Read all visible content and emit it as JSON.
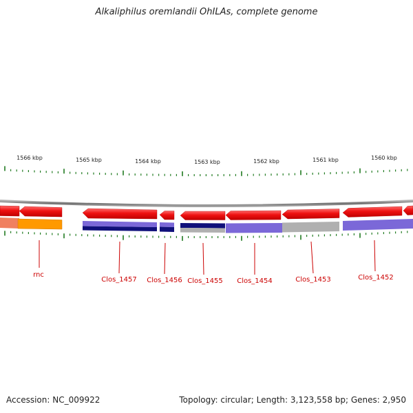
{
  "title": "Alkaliphilus oremlandii OhILAs, complete genome",
  "accession": "Accession: NC_009922",
  "summary": "Topology: circular; Length: 3,123,558 bp; Genes: 2,950",
  "ruler_labels": [
    "1566 kbp",
    "1565 kbp",
    "1564 kbp",
    "1563 kbp",
    "1562 kbp",
    "1561 kbp",
    "1560 kbp"
  ],
  "gene_labels": [
    "rnc",
    "Clos_1457",
    "Clos_1456",
    "Clos_1455",
    "Clos_1454",
    "Clos_1453",
    "Clos_1452"
  ],
  "colors": {
    "gene_arrow": "#ee1111",
    "backbone": "#888888",
    "tick": "#1f7a1f",
    "label": "#cc0000",
    "cog_blue_dark": "#10107a",
    "cog_purple": "#7b68d8",
    "cog_gray": "#b0b0b0",
    "cog_orange": "#ff9900"
  }
}
